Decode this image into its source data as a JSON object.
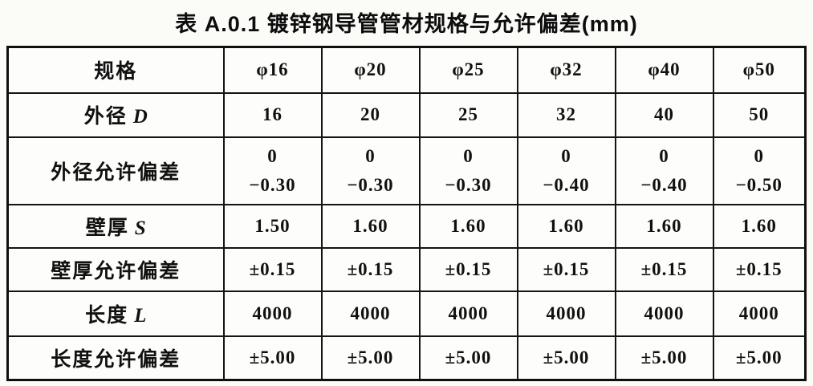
{
  "page": {
    "ink_color": "#111111",
    "background_color": "#fbfbf8"
  },
  "title": "表 A.0.1  镀锌钢导管管材规格与允许偏差(mm)",
  "table": {
    "rows": [
      {
        "label": "规格",
        "var": "",
        "values": [
          "φ16",
          "φ20",
          "φ25",
          "φ32",
          "φ40",
          "φ50"
        ]
      },
      {
        "label": "外径",
        "var": "D",
        "values": [
          "16",
          "20",
          "25",
          "32",
          "40",
          "50"
        ]
      },
      {
        "label": "外径允许偏差",
        "var": "",
        "values": [
          "0\n−0.30",
          "0\n−0.30",
          "0\n−0.30",
          "0\n−0.40",
          "0\n−0.40",
          "0\n−0.50"
        ]
      },
      {
        "label": "壁厚",
        "var": "S",
        "values": [
          "1.50",
          "1.60",
          "1.60",
          "1.60",
          "1.60",
          "1.60"
        ]
      },
      {
        "label": "壁厚允许偏差",
        "var": "",
        "values": [
          "±0.15",
          "±0.15",
          "±0.15",
          "±0.15",
          "±0.15",
          "±0.15"
        ]
      },
      {
        "label": "长度",
        "var": "L",
        "values": [
          "4000",
          "4000",
          "4000",
          "4000",
          "4000",
          "4000"
        ]
      },
      {
        "label": "长度允许偏差",
        "var": "",
        "values": [
          "±5.00",
          "±5.00",
          "±5.00",
          "±5.00",
          "±5.00",
          "±5.00"
        ]
      }
    ]
  }
}
